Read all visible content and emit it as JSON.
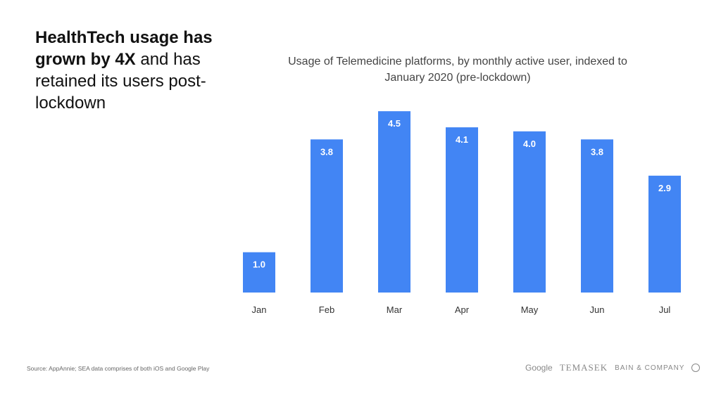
{
  "headline": {
    "bold": "HealthTech usage has grown by 4X",
    "rest": " and has retained its users post-lockdown"
  },
  "chart_data": {
    "type": "bar",
    "title": "Usage of Telemedicine platforms, by monthly active user, indexed to January 2020 (pre-lockdown)",
    "categories": [
      "Jan",
      "Feb",
      "Mar",
      "Apr",
      "May",
      "Jun",
      "Jul"
    ],
    "values": [
      1.0,
      3.8,
      4.5,
      4.1,
      4.0,
      3.8,
      2.9
    ],
    "data_labels": [
      "1.0",
      "3.8",
      "4.5",
      "4.1",
      "4.0",
      "3.8",
      "2.9"
    ],
    "ylim": [
      0,
      4.5
    ],
    "grid": false,
    "bar_color": "#4285F4"
  },
  "source": "Source: AppAnnie; SEA data comprises of both iOS and Google Play",
  "logos": {
    "google": "Google",
    "temasek": "TEMASEK",
    "bain": "BAIN & COMPANY"
  }
}
